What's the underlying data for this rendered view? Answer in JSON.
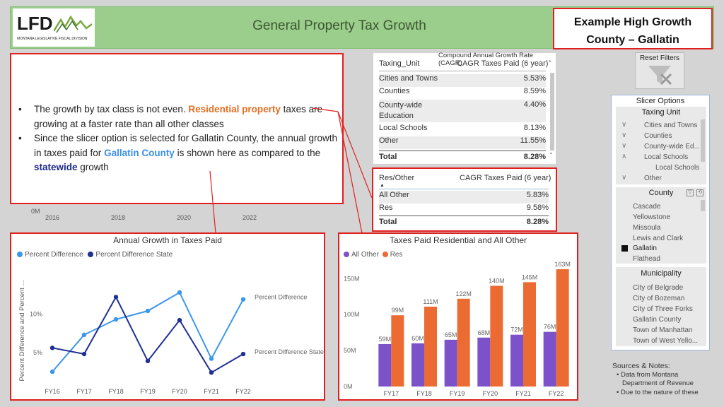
{
  "header": {
    "logo_text": "LFD",
    "logo_subtitle": "MONTANA LEGISLATIVE FISCAL DIVISION",
    "title": "General Property Tax Growth",
    "callout_line1": "Example High Growth",
    "callout_line2": "County – Gallatin"
  },
  "textbox": {
    "b1_part1": "The growth by tax class is not even. ",
    "b1_highlight": "Residential property",
    "b1_part2": " taxes are growing at a faster rate than all other classes",
    "b2_part1": "Since the slicer option is selected for Gallatin County, the annual growth in taxes paid for ",
    "b2_highlight1": "Gallatin County",
    "b2_part2": " is shown here as compared to the ",
    "b2_highlight2": "statewide",
    "b2_part3": " growth"
  },
  "background_axis": {
    "zero_label": "0M",
    "years": [
      "2016",
      "2018",
      "2020",
      "2022"
    ]
  },
  "cagr_table": {
    "caption": "Compound Annual Growth Rate (CAGR)",
    "col1": "Taxing_Unit",
    "col2": "CAGR Taxes Paid (6 year)",
    "rows": [
      {
        "label": "Cities and Towns",
        "value": "5.53%"
      },
      {
        "label": "Counties",
        "value": "8.59%"
      },
      {
        "label": "County-wide",
        "label2": "Education",
        "value": "4.40%"
      },
      {
        "label": "Local Schools",
        "value": "8.13%"
      },
      {
        "label": "Other",
        "value": "11.55%"
      }
    ],
    "total_label": "Total",
    "total_value": "8.28%"
  },
  "res_table": {
    "col1": "Res/Other",
    "col2": "CAGR Taxes Paid (6 year)",
    "rows": [
      {
        "label": "All Other",
        "value": "5.83%"
      },
      {
        "label": "Res",
        "value": "9.58%"
      }
    ],
    "total_label": "Total",
    "total_value": "8.28%"
  },
  "colors": {
    "accent_red": "#e02020",
    "banner_green": "#9bce8c",
    "series_light_blue": "#3a97ec",
    "series_navy": "#1f2f94",
    "bar_purple": "#7b52c9",
    "bar_orange": "#ec6b33"
  },
  "chart_data": [
    {
      "type": "line",
      "title": "Annual Growth in Taxes Paid",
      "ylabel": "Percent Difference and Percent ...",
      "categories": [
        "FY16",
        "FY17",
        "FY18",
        "FY19",
        "FY20",
        "FY21",
        "FY22"
      ],
      "yticks": [
        {
          "value": 5,
          "label": "5%"
        },
        {
          "value": 10,
          "label": "10%"
        }
      ],
      "ylim": [
        1.5,
        16
      ],
      "series": [
        {
          "name": "Percent Difference",
          "values": [
            2.5,
            7.3,
            9.3,
            10.4,
            12.8,
            4.2,
            11.9
          ],
          "end_label": "Percent Difference"
        },
        {
          "name": "Percent Difference State",
          "values": [
            5.6,
            4.8,
            12.2,
            3.9,
            9.2,
            2.4,
            4.8
          ],
          "end_label": "Percent Difference State"
        }
      ],
      "legend_position": "top-left"
    },
    {
      "type": "bar",
      "title": "Taxes Paid Residential and All Other",
      "categories": [
        "FY17",
        "FY18",
        "FY19",
        "FY20",
        "FY21",
        "FY22"
      ],
      "yticks": [
        {
          "value": 0,
          "label": "0M"
        },
        {
          "value": 50,
          "label": "50M"
        },
        {
          "value": 100,
          "label": "100M"
        },
        {
          "value": 150,
          "label": "150M"
        }
      ],
      "ylim": [
        0,
        165
      ],
      "series": [
        {
          "name": "All Other",
          "values": [
            59,
            60,
            65,
            68,
            72,
            76
          ],
          "labels": [
            "59M",
            "60M",
            "65M",
            "68M",
            "72M",
            "76M"
          ]
        },
        {
          "name": "Res",
          "values": [
            99,
            111,
            122,
            140,
            145,
            163
          ],
          "labels": [
            "99M",
            "111M",
            "122M",
            "140M",
            "145M",
            "163M"
          ]
        }
      ],
      "legend_position": "top-left"
    }
  ],
  "reset_filters": {
    "label": "Reset Filters"
  },
  "slicer": {
    "title": "Slicer Options",
    "taxing_unit": {
      "title": "Taxing Unit",
      "items": [
        "Cities and Towns",
        "Counties",
        "County-wide Ed...",
        "Local Schools",
        "Local Schools",
        "Other"
      ]
    },
    "county": {
      "title": "County",
      "items": [
        "Cascade",
        "Yellowstone",
        "Missoula",
        "Lewis and Clark",
        "Gallatin",
        "Flathead"
      ],
      "selected": "Gallatin"
    },
    "municipality": {
      "title": "Municipality",
      "items": [
        "City of Belgrade",
        "City of Bozeman",
        "City of Three Forks",
        "Gallatin County",
        "Town of Manhattan",
        "Town of West Yello..."
      ]
    }
  },
  "notes": {
    "title": "Sources & Notes:",
    "line1": "• Data from Montana",
    "line2": "Department of Revenue",
    "line3": "• Due to the nature of these"
  }
}
